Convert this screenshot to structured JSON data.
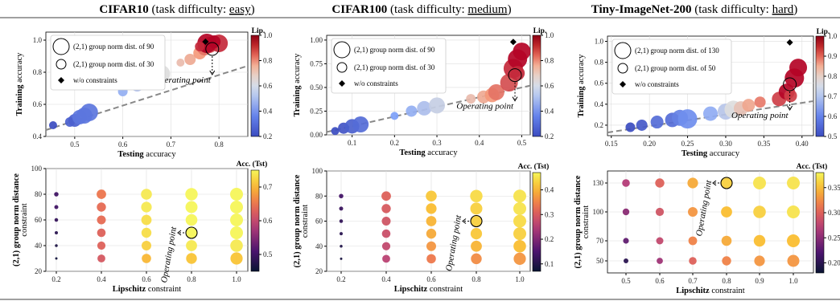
{
  "titles": [
    {
      "main": "CIFAR10",
      "rest": " (task difficulty: ",
      "diff": "easy",
      "end": ")"
    },
    {
      "main": "CIFAR100",
      "rest": " (task difficulty: ",
      "diff": "medium",
      "end": ")"
    },
    {
      "main": "Tiny-ImageNet-200",
      "rest": " (task difficulty: ",
      "diff": "hard",
      "end": ")"
    }
  ],
  "labels": {
    "training": "Training",
    "accuracy": "accuracy",
    "testing": "Testing",
    "group_norm": "(2,1) group norm distance",
    "constraint": "constraint",
    "lipschitz": "Lipschitz",
    "operating_point": "Operating point",
    "cb_lip": "Lip.",
    "cb_acc": "Acc. (Tst)",
    "wo": "w/o constraints"
  },
  "colors": {
    "diamond": "#000000",
    "trend": "#888888"
  },
  "chart_data": [
    {
      "type": "scatter",
      "panel": "CIFAR10 top",
      "xlim": [
        0.44,
        0.86
      ],
      "ylim": [
        0.4,
        1.05
      ],
      "xticks": [
        "0.5",
        "0.6",
        "0.7",
        "0.8"
      ],
      "yticks": [
        "0.4",
        "0.6",
        "0.8",
        "1.0"
      ],
      "legend": [
        "(2,1) group norm dist. of 90",
        "(2,1) group norm dist. of 30"
      ],
      "colorbar": {
        "label": "Lip.",
        "range": [
          0.2,
          1.0
        ],
        "ticks": [
          "0.2",
          "0.4",
          "0.6",
          "0.8",
          "1.0"
        ]
      },
      "points": [
        [
          0.455,
          0.47,
          0.2,
          5
        ],
        [
          0.49,
          0.49,
          0.25,
          6
        ],
        [
          0.5,
          0.5,
          0.25,
          8
        ],
        [
          0.51,
          0.52,
          0.3,
          9
        ],
        [
          0.52,
          0.53,
          0.3,
          10
        ],
        [
          0.53,
          0.55,
          0.3,
          11
        ],
        [
          0.6,
          0.68,
          0.45,
          6
        ],
        [
          0.63,
          0.72,
          0.5,
          8
        ],
        [
          0.65,
          0.76,
          0.55,
          9
        ],
        [
          0.67,
          0.78,
          0.6,
          10
        ],
        [
          0.68,
          0.79,
          0.6,
          11
        ],
        [
          0.72,
          0.86,
          0.7,
          5
        ],
        [
          0.74,
          0.88,
          0.75,
          7
        ],
        [
          0.76,
          0.92,
          0.8,
          8
        ],
        [
          0.77,
          0.95,
          0.85,
          9
        ],
        [
          0.78,
          0.97,
          0.9,
          10
        ],
        [
          0.8,
          0.98,
          0.95,
          11
        ],
        [
          0.775,
          0.98,
          1.0,
          12
        ],
        [
          0.79,
          0.99,
          1.0,
          8
        ],
        [
          0.76,
          0.96,
          0.95,
          6
        ]
      ],
      "diamond": [
        0.772,
        0.99
      ],
      "operating": [
        0.786,
        0.945
      ],
      "trend": [
        [
          0.44,
          0.44
        ],
        [
          0.86,
          0.84
        ]
      ]
    },
    {
      "type": "scatter",
      "panel": "CIFAR100 top",
      "xlim": [
        0.04,
        0.52
      ],
      "ylim": [
        0.0,
        1.05
      ],
      "xticks": [
        "0.1",
        "0.2",
        "0.3",
        "0.4",
        "0.5"
      ],
      "yticks": [
        "0.00",
        "0.25",
        "0.50",
        "0.75",
        "1.00"
      ],
      "legend": [
        "(2,1) group norm dist. of 90",
        "(2,1) group norm dist. of 30"
      ],
      "colorbar": {
        "label": "Lip.",
        "range": [
          0.2,
          1.0
        ],
        "ticks": [
          "0.2",
          "0.4",
          "0.6",
          "0.8",
          "1.0"
        ]
      },
      "points": [
        [
          0.06,
          0.04,
          0.2,
          5
        ],
        [
          0.08,
          0.07,
          0.22,
          7
        ],
        [
          0.1,
          0.09,
          0.25,
          9
        ],
        [
          0.12,
          0.11,
          0.28,
          10
        ],
        [
          0.2,
          0.2,
          0.4,
          5
        ],
        [
          0.24,
          0.25,
          0.45,
          7
        ],
        [
          0.27,
          0.28,
          0.5,
          9
        ],
        [
          0.3,
          0.31,
          0.55,
          10
        ],
        [
          0.38,
          0.38,
          0.7,
          6
        ],
        [
          0.41,
          0.4,
          0.75,
          8
        ],
        [
          0.43,
          0.42,
          0.8,
          9
        ],
        [
          0.44,
          0.45,
          0.85,
          10
        ],
        [
          0.47,
          0.55,
          0.9,
          11
        ],
        [
          0.48,
          0.7,
          0.95,
          12
        ],
        [
          0.49,
          0.8,
          1.0,
          12
        ],
        [
          0.5,
          0.88,
          1.0,
          11
        ],
        [
          0.49,
          0.65,
          0.95,
          9
        ]
      ],
      "diamond": [
        0.48,
        0.98
      ],
      "operating": [
        0.484,
        0.63
      ],
      "trend": [
        [
          0.04,
          0.03
        ],
        [
          0.52,
          0.52
        ]
      ]
    },
    {
      "type": "scatter",
      "panel": "Tiny-ImageNet-200 top",
      "xlim": [
        0.145,
        0.415
      ],
      "ylim": [
        0.1,
        1.05
      ],
      "xticks": [
        "0.15",
        "0.20",
        "0.25",
        "0.30",
        "0.35",
        "0.40"
      ],
      "yticks": [
        "0.2",
        "0.4",
        "0.6",
        "0.8",
        "1.0"
      ],
      "legend": [
        "(2,1) group norm dist. of 130",
        "(2,1) group norm dist. of 50"
      ],
      "colorbar": {
        "label": "Lip.",
        "range": [
          0.5,
          1.0
        ],
        "ticks": [
          "0.5",
          "0.6",
          "0.7",
          "0.8",
          "0.9",
          "1.0"
        ]
      },
      "points": [
        [
          0.175,
          0.18,
          0.5,
          6
        ],
        [
          0.19,
          0.2,
          0.52,
          7
        ],
        [
          0.21,
          0.23,
          0.55,
          8
        ],
        [
          0.23,
          0.25,
          0.55,
          9
        ],
        [
          0.24,
          0.27,
          0.58,
          10
        ],
        [
          0.25,
          0.26,
          0.6,
          12
        ],
        [
          0.28,
          0.31,
          0.65,
          9
        ],
        [
          0.3,
          0.33,
          0.7,
          10
        ],
        [
          0.31,
          0.35,
          0.75,
          11
        ],
        [
          0.32,
          0.36,
          0.8,
          9
        ],
        [
          0.33,
          0.39,
          0.85,
          8
        ],
        [
          0.345,
          0.42,
          0.9,
          7
        ],
        [
          0.37,
          0.45,
          0.95,
          9
        ],
        [
          0.38,
          0.52,
          1.0,
          10
        ],
        [
          0.39,
          0.65,
          1.0,
          12
        ],
        [
          0.395,
          0.75,
          1.0,
          11
        ],
        [
          0.385,
          0.48,
          0.95,
          8
        ]
      ],
      "diamond": [
        0.384,
        0.99
      ],
      "operating": [
        0.384,
        0.59
      ],
      "trend": [
        [
          0.145,
          0.13
        ],
        [
          0.415,
          0.43
        ]
      ]
    },
    {
      "type": "scatter",
      "panel": "CIFAR10 bottom",
      "xlabels": [
        "0.2",
        "0.4",
        "0.6",
        "0.8",
        "1.0"
      ],
      "ylabels": [
        "20",
        "40",
        "60",
        "80",
        "100"
      ],
      "colorbar": {
        "label": "Acc. (Tst)",
        "range": [
          0.45,
          0.75
        ],
        "ticks": [
          "0.5",
          "0.6",
          "0.7"
        ]
      },
      "grid": [
        [
          0.46,
          0.47,
          0.48,
          0.49,
          0.5,
          0.5
        ],
        [
          0.62,
          0.63,
          0.63,
          0.64,
          0.64,
          0.65
        ],
        [
          0.7,
          0.72,
          0.73,
          0.73,
          0.74,
          0.74
        ],
        [
          0.71,
          0.74,
          0.75,
          0.75,
          0.75,
          0.75
        ],
        [
          0.71,
          0.74,
          0.75,
          0.75,
          0.75,
          0.75
        ]
      ],
      "operating": [
        3,
        2
      ]
    },
    {
      "type": "scatter",
      "panel": "CIFAR100 bottom",
      "xlabels": [
        "0.2",
        "0.4",
        "0.6",
        "0.8",
        "1.0"
      ],
      "ylabels": [
        "20",
        "40",
        "60",
        "80",
        "100"
      ],
      "colorbar": {
        "label": "Acc. (Tst)",
        "range": [
          0.07,
          0.47
        ],
        "ticks": [
          "0.1",
          "0.2",
          "0.3",
          "0.4"
        ]
      },
      "grid": [
        [
          0.09,
          0.1,
          0.11,
          0.12,
          0.13,
          0.14
        ],
        [
          0.26,
          0.27,
          0.28,
          0.29,
          0.3,
          0.31
        ],
        [
          0.34,
          0.37,
          0.39,
          0.4,
          0.41,
          0.42
        ],
        [
          0.36,
          0.4,
          0.42,
          0.43,
          0.43,
          0.44
        ],
        [
          0.37,
          0.41,
          0.43,
          0.44,
          0.45,
          0.45
        ]
      ],
      "operating": [
        3,
        3
      ]
    },
    {
      "type": "scatter",
      "panel": "Tiny-ImageNet-200 bottom",
      "xlabels": [
        "0.5",
        "0.6",
        "0.7",
        "0.8",
        "0.9",
        "1.0"
      ],
      "ylabels": [
        "50",
        "70",
        "100",
        "130"
      ],
      "colorbar": {
        "label": "Acc. (Tst)",
        "range": [
          0.18,
          0.38
        ],
        "ticks": [
          "0.20",
          "0.25",
          "0.30",
          "0.35"
        ]
      },
      "grid": [
        [
          0.2,
          0.23,
          0.25,
          0.27
        ],
        [
          0.26,
          0.28,
          0.29,
          0.3
        ],
        [
          0.3,
          0.32,
          0.33,
          0.34
        ],
        [
          0.32,
          0.34,
          0.35,
          0.36
        ],
        [
          0.33,
          0.35,
          0.36,
          0.37
        ],
        [
          0.33,
          0.35,
          0.37,
          0.37
        ]
      ],
      "operating": [
        3,
        3
      ]
    }
  ]
}
